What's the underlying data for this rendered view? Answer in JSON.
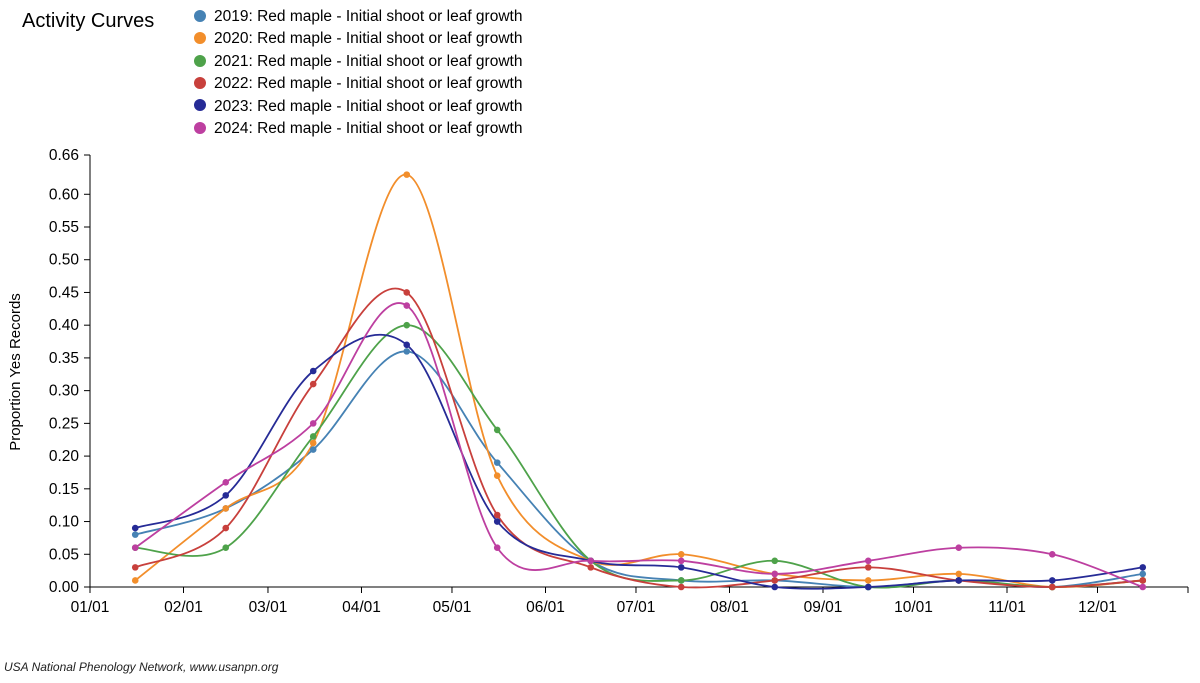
{
  "chart_data": {
    "type": "line",
    "title": "Activity Curves",
    "ylabel": "Proportion Yes Records",
    "xlabel": "",
    "ylim": [
      0,
      0.66
    ],
    "xlim": [
      "01/01",
      "12/31"
    ],
    "x_tick_labels": [
      "01/01",
      "02/01",
      "03/01",
      "04/01",
      "05/01",
      "06/01",
      "07/01",
      "08/01",
      "09/01",
      "10/01",
      "11/01",
      "12/01"
    ],
    "y_tick_labels": [
      "0.00",
      "0.05",
      "0.10",
      "0.15",
      "0.20",
      "0.25",
      "0.30",
      "0.35",
      "0.40",
      "0.45",
      "0.50",
      "0.55",
      "0.60",
      "0.66"
    ],
    "x": [
      "01/16",
      "02/15",
      "03/16",
      "04/16",
      "05/16",
      "06/16",
      "07/16",
      "08/16",
      "09/16",
      "10/16",
      "11/16",
      "12/16"
    ],
    "legend_position": "top",
    "grid": false,
    "series": [
      {
        "name": "2019: Red maple - Initial shoot or leaf growth",
        "color": "#4682b4",
        "values": [
          0.08,
          0.12,
          0.21,
          0.36,
          0.19,
          0.04,
          0.01,
          0.01,
          0.0,
          0.01,
          0.0,
          0.02
        ]
      },
      {
        "name": "2020: Red maple - Initial shoot or leaf growth",
        "color": "#f28e2b",
        "values": [
          0.01,
          0.12,
          0.22,
          0.63,
          0.17,
          0.04,
          0.05,
          0.02,
          0.01,
          0.02,
          0.0,
          0.01
        ]
      },
      {
        "name": "2021: Red maple - Initial shoot or leaf growth",
        "color": "#4ea24a",
        "values": [
          0.06,
          0.06,
          0.23,
          0.4,
          0.24,
          0.04,
          0.01,
          0.04,
          0.0,
          0.01,
          0.0,
          0.01
        ]
      },
      {
        "name": "2022: Red maple - Initial shoot or leaf growth",
        "color": "#c8403c",
        "values": [
          0.03,
          0.09,
          0.31,
          0.45,
          0.11,
          0.03,
          0.0,
          0.01,
          0.03,
          0.01,
          0.0,
          0.01
        ]
      },
      {
        "name": "2023: Red maple - Initial shoot or leaf growth",
        "color": "#262b96",
        "values": [
          0.09,
          0.14,
          0.33,
          0.37,
          0.1,
          0.04,
          0.03,
          0.0,
          0.0,
          0.01,
          0.01,
          0.03
        ]
      },
      {
        "name": "2024: Red maple - Initial shoot or leaf growth",
        "color": "#bd3fa0",
        "values": [
          0.06,
          0.16,
          0.25,
          0.43,
          0.06,
          0.04,
          0.04,
          0.02,
          0.04,
          0.06,
          0.05,
          0.0
        ]
      }
    ]
  },
  "footer": {
    "credit": "USA National Phenology Network, www.usanpn.org"
  }
}
